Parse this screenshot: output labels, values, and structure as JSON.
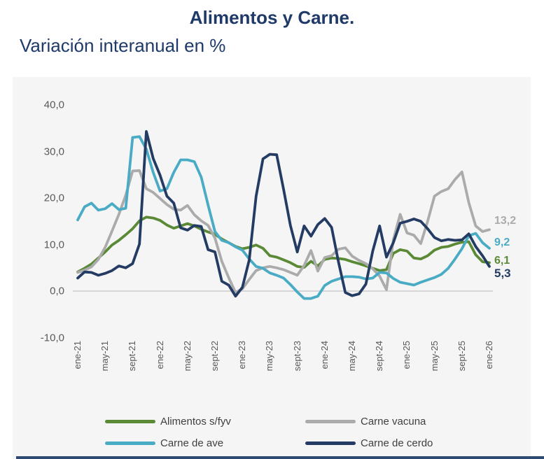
{
  "chart_data": {
    "type": "line",
    "title": "Alimentos y Carne.",
    "subtitle": "Variación interanual en %",
    "x_unit": "month",
    "x_start": "ene-21",
    "x_end": "ene-26",
    "x_tick_labels": [
      "ene-21",
      "may-21",
      "sept-21",
      "ene-22",
      "may-22",
      "sept-22",
      "ene-23",
      "may-23",
      "sept-23",
      "ene-24",
      "may-24",
      "sept-24",
      "ene-25",
      "may-25",
      "sept-25",
      "ene-26"
    ],
    "y_ticks": [
      40,
      30,
      20,
      10,
      0,
      -10
    ],
    "y_tick_labels": [
      "40,0",
      "30,0",
      "20,0",
      "10,0",
      "0,0",
      "-10,0"
    ],
    "ylim": [
      -10,
      40
    ],
    "grid": "zero-line-only",
    "zero_line_color": "#d6d6d6",
    "plot_background": "#f5f5f5",
    "legend_position": "bottom",
    "series": [
      {
        "name": "Alimentos s/fyv",
        "color": "#5a8a36",
        "end_label": "6,1",
        "values": [
          4.1,
          4.9,
          5.8,
          7.1,
          8.4,
          9.9,
          10.9,
          12.1,
          13.4,
          15.1,
          15.9,
          15.7,
          15.2,
          14.2,
          13.5,
          14.0,
          14.5,
          14.0,
          13.3,
          12.7,
          12.2,
          11.2,
          10.4,
          9.6,
          9.1,
          9.4,
          9.9,
          9.2,
          7.6,
          7.3,
          6.7,
          6.1,
          5.3,
          5.1,
          6.4,
          5.4,
          6.8,
          7.1,
          7.0,
          6.8,
          6.3,
          5.9,
          5.4,
          4.9,
          4.4,
          4.6,
          8.1,
          8.9,
          8.6,
          7.1,
          6.9,
          7.6,
          8.8,
          9.4,
          9.6,
          10.1,
          10.5,
          10.6,
          7.8,
          6.3,
          6.1
        ]
      },
      {
        "name": "Carne vacuna",
        "color": "#ababab",
        "end_label": "13,2",
        "values": [
          4.0,
          4.5,
          5.2,
          6.8,
          9.4,
          12.9,
          16.5,
          20.6,
          25.8,
          25.9,
          22.0,
          21.2,
          19.9,
          18.6,
          17.6,
          17.4,
          18.4,
          16.4,
          15.1,
          14.1,
          11.4,
          6.4,
          2.9,
          -0.3,
          0.5,
          2.5,
          4.4,
          5.0,
          5.3,
          5.0,
          4.6,
          4.0,
          3.4,
          5.5,
          8.7,
          4.3,
          7.2,
          7.6,
          9.0,
          9.3,
          7.5,
          6.6,
          5.9,
          4.8,
          3.2,
          0.3,
          11.0,
          16.5,
          12.5,
          12.0,
          10.2,
          15.0,
          20.4,
          21.4,
          22.0,
          24.0,
          25.6,
          19.0,
          14.0,
          12.8,
          13.2
        ]
      },
      {
        "name": "Carne de ave",
        "color": "#4aabc5",
        "end_label": "9,2",
        "values": [
          15.3,
          18.1,
          18.9,
          17.4,
          17.7,
          18.8,
          17.5,
          17.8,
          33.0,
          33.2,
          30.5,
          25.5,
          21.5,
          22.0,
          25.5,
          28.2,
          28.2,
          27.8,
          24.5,
          18.5,
          12.8,
          10.9,
          10.4,
          9.5,
          8.8,
          6.9,
          5.3,
          4.9,
          3.9,
          3.4,
          2.8,
          1.4,
          -0.2,
          -1.6,
          -1.6,
          -1.1,
          1.2,
          2.1,
          2.6,
          3.1,
          3.1,
          3.0,
          2.6,
          2.8,
          4.0,
          3.9,
          2.7,
          1.9,
          1.6,
          1.3,
          1.9,
          2.4,
          2.9,
          3.6,
          4.9,
          6.9,
          9.1,
          11.9,
          12.4,
          10.4,
          9.2
        ]
      },
      {
        "name": "Carne de cerdo",
        "color": "#243b63",
        "end_label": "5,3",
        "values": [
          2.8,
          4.1,
          4.0,
          3.4,
          3.8,
          4.4,
          5.4,
          5.0,
          5.9,
          10.1,
          34.3,
          28.5,
          24.9,
          20.4,
          18.9,
          13.6,
          13.1,
          14.1,
          13.9,
          8.9,
          8.4,
          2.1,
          1.3,
          -1.1,
          0.8,
          6.7,
          20.4,
          28.4,
          29.4,
          29.3,
          21.9,
          14.1,
          8.4,
          14.0,
          11.8,
          14.3,
          15.6,
          13.7,
          6.3,
          -0.3,
          -1.0,
          -0.6,
          1.5,
          8.6,
          14.0,
          7.3,
          10.4,
          14.6,
          15.0,
          15.5,
          15.0,
          13.4,
          11.5,
          10.8,
          11.1,
          10.9,
          11.0,
          12.3,
          9.6,
          7.6,
          5.3
        ]
      }
    ]
  },
  "footer": {
    "bar_color": "#2e4a73"
  }
}
